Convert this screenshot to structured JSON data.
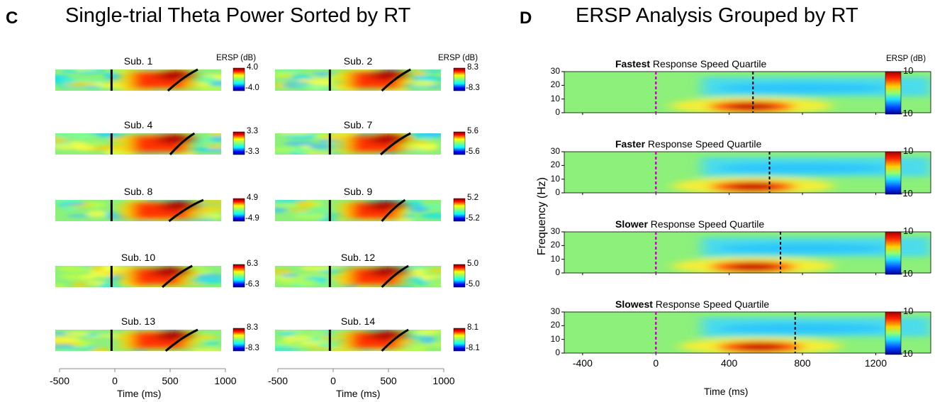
{
  "panel_c": {
    "letter": "C",
    "title": "Single-trial Theta Power Sorted by RT",
    "colorbar_label": "ERSP (dB)",
    "x_label": "Time (ms)",
    "x_ticks": [
      "-500",
      "0",
      "500",
      "1000"
    ],
    "subjects": [
      {
        "name": "Sub. 1",
        "max": "4.0",
        "min": "-4.0"
      },
      {
        "name": "Sub. 2",
        "max": "8.3",
        "min": "-8.3"
      },
      {
        "name": "Sub. 4",
        "max": "3.3",
        "min": "-3.3"
      },
      {
        "name": "Sub. 7",
        "max": "5.6",
        "min": "-5.6"
      },
      {
        "name": "Sub. 8",
        "max": "4.9",
        "min": "-4.9"
      },
      {
        "name": "Sub. 9",
        "max": "5.2",
        "min": "-5.2"
      },
      {
        "name": "Sub. 10",
        "max": "6.3",
        "min": "-6.3"
      },
      {
        "name": "Sub. 12",
        "max": "5.0",
        "min": "-5.0"
      },
      {
        "name": "Sub. 13",
        "max": "8.3",
        "min": "-8.3"
      },
      {
        "name": "Sub. 14",
        "max": "8.1",
        "min": "-8.1"
      }
    ]
  },
  "panel_d": {
    "letter": "D",
    "title": "ERSP Analysis Grouped by RT",
    "colorbar_label": "ERSP (dB)",
    "colorbar_max": "10",
    "colorbar_min": "-10",
    "y_label": "Frequency (Hz)",
    "x_label": "Time (ms)",
    "x_ticks": [
      "-400",
      "0",
      "400",
      "800",
      "1200"
    ],
    "y_ticks": [
      "0",
      "10",
      "20",
      "30"
    ],
    "quartiles": [
      {
        "bold": "Fastest",
        "rest": " Response Speed Quartile"
      },
      {
        "bold": "Faster",
        "rest": " Response Speed Quartile"
      },
      {
        "bold": "Slower",
        "rest": " Response Speed Quartile"
      },
      {
        "bold": "Slowest",
        "rest": " Response Speed Quartile"
      }
    ]
  },
  "chart_data": [
    {
      "type": "heatmap",
      "title": "Single-trial Theta Power Sorted by RT",
      "xlabel": "Time (ms)",
      "xlim": [
        -500,
        1000
      ],
      "x_ticks": [
        -500,
        0,
        500,
        1000
      ],
      "colorbar_label": "ERSP (dB)",
      "stimulus_onset_ms": -30,
      "series": [
        {
          "name": "Sub. 1",
          "clim": [
            -4.0,
            4.0
          ],
          "rt_ms": [
            480,
            750
          ]
        },
        {
          "name": "Sub. 2",
          "clim": [
            -8.3,
            8.3
          ],
          "rt_ms": [
            440,
            700
          ]
        },
        {
          "name": "Sub. 4",
          "clim": [
            -3.3,
            3.3
          ],
          "rt_ms": [
            500,
            720
          ]
        },
        {
          "name": "Sub. 7",
          "clim": [
            -5.6,
            5.6
          ],
          "rt_ms": [
            430,
            700
          ]
        },
        {
          "name": "Sub. 8",
          "clim": [
            -4.9,
            4.9
          ],
          "rt_ms": [
            490,
            800
          ]
        },
        {
          "name": "Sub. 9",
          "clim": [
            -5.2,
            5.2
          ],
          "rt_ms": [
            440,
            650
          ]
        },
        {
          "name": "Sub. 10",
          "clim": [
            -6.3,
            6.3
          ],
          "rt_ms": [
            430,
            700
          ]
        },
        {
          "name": "Sub. 12",
          "clim": [
            -5.0,
            5.0
          ],
          "rt_ms": [
            440,
            680
          ]
        },
        {
          "name": "Sub. 13",
          "clim": [
            -8.3,
            8.3
          ],
          "rt_ms": [
            460,
            750
          ]
        },
        {
          "name": "Sub. 14",
          "clim": [
            -8.1,
            8.1
          ],
          "rt_ms": [
            440,
            680
          ]
        }
      ]
    },
    {
      "type": "heatmap",
      "title": "ERSP Analysis Grouped by RT",
      "xlabel": "Time (ms)",
      "ylabel": "Frequency (Hz)",
      "xlim": [
        -500,
        1500
      ],
      "ylim": [
        0,
        30
      ],
      "x_ticks": [
        -400,
        0,
        400,
        800,
        1200
      ],
      "y_ticks": [
        0,
        10,
        20,
        30
      ],
      "colorbar_label": "ERSP (dB)",
      "clim": [
        -10,
        10
      ],
      "stimulus_onset_ms": 0,
      "series": [
        {
          "name": "Fastest Response Speed Quartile",
          "rt_ms": 530,
          "theta_peak_ms": 520,
          "theta_peak_hz": 5
        },
        {
          "name": "Faster Response Speed Quartile",
          "rt_ms": 620,
          "theta_peak_ms": 530,
          "theta_peak_hz": 5
        },
        {
          "name": "Slower Response Speed Quartile",
          "rt_ms": 680,
          "theta_peak_ms": 530,
          "theta_peak_hz": 5
        },
        {
          "name": "Slowest Response Speed Quartile",
          "rt_ms": 760,
          "theta_peak_ms": 570,
          "theta_peak_hz": 5
        }
      ]
    }
  ]
}
